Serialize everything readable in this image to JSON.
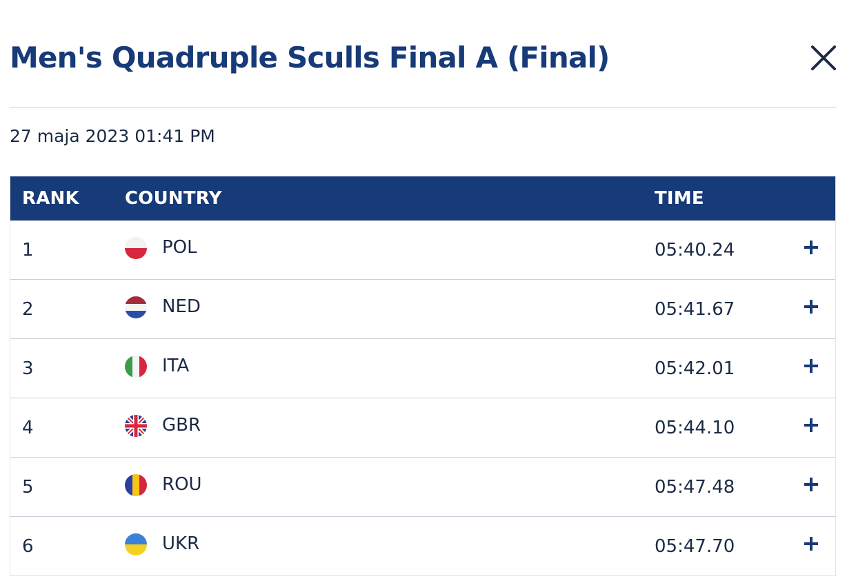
{
  "header": {
    "title": "Men's Quadruple Sculls Final A (Final)",
    "close_icon": "close-icon"
  },
  "event": {
    "datetime": "27 maja 2023 01:41 PM"
  },
  "table": {
    "columns": {
      "rank": "RANK",
      "country": "COUNTRY",
      "time": "TIME"
    },
    "rows": [
      {
        "rank": "1",
        "code": "POL",
        "time": "05:40.24",
        "flag": "poland-flag-icon",
        "expand_icon": "plus-icon"
      },
      {
        "rank": "2",
        "code": "NED",
        "time": "05:41.67",
        "flag": "netherlands-flag-icon",
        "expand_icon": "plus-icon"
      },
      {
        "rank": "3",
        "code": "ITA",
        "time": "05:42.01",
        "flag": "italy-flag-icon",
        "expand_icon": "plus-icon"
      },
      {
        "rank": "4",
        "code": "GBR",
        "time": "05:44.10",
        "flag": "great-britain-flag-icon",
        "expand_icon": "plus-icon"
      },
      {
        "rank": "5",
        "code": "ROU",
        "time": "05:47.48",
        "flag": "romania-flag-icon",
        "expand_icon": "plus-icon"
      },
      {
        "rank": "6",
        "code": "UKR",
        "time": "05:47.70",
        "flag": "ukraine-flag-icon",
        "expand_icon": "plus-icon"
      }
    ]
  },
  "colors": {
    "brand_navy": "#173a78",
    "text": "#1b2a44",
    "row_border": "#c8cfd9"
  }
}
